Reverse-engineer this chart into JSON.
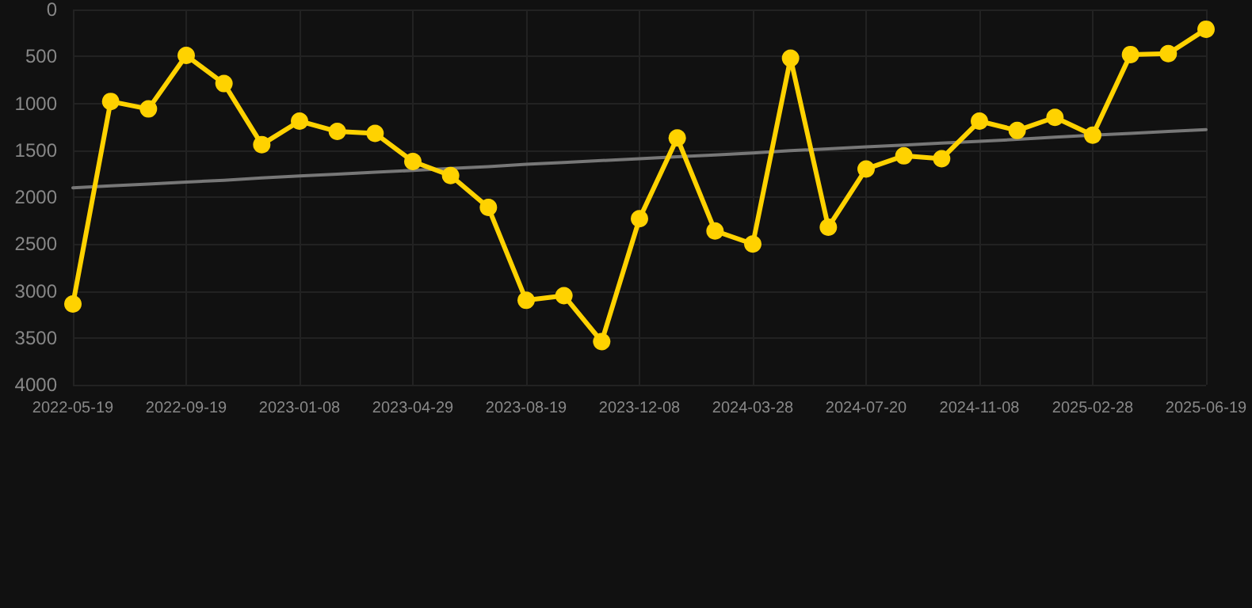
{
  "chart_data": {
    "type": "line",
    "categories": [
      "2022-05-19",
      null,
      null,
      "2022-09-19",
      null,
      null,
      "2023-01-08",
      null,
      null,
      "2023-04-29",
      null,
      null,
      "2023-08-19",
      null,
      null,
      "2023-12-08",
      null,
      null,
      "2024-03-28",
      null,
      null,
      "2024-07-20",
      null,
      null,
      "2024-11-08",
      null,
      null,
      "2025-02-28",
      null,
      null,
      "2025-06-19"
    ],
    "series": [
      {
        "color": "#ffd200",
        "marker": "circle",
        "values": [
          3140,
          980,
          1060,
          490,
          790,
          1440,
          1190,
          1300,
          1320,
          1620,
          1770,
          2110,
          3100,
          3050,
          3540,
          2230,
          1370,
          2360,
          2500,
          520,
          2320,
          1700,
          1560,
          1590,
          1190,
          1290,
          1150,
          1340,
          480,
          470,
          210
        ]
      },
      {
        "type": "line",
        "color": "#777777",
        "marker": "none",
        "values": [
          1900,
          1880,
          1860,
          1840,
          1820,
          1795,
          1775,
          1755,
          1735,
          1715,
          1695,
          1675,
          1650,
          1630,
          1610,
          1590,
          1570,
          1550,
          1530,
          1505,
          1485,
          1465,
          1445,
          1425,
          1405,
          1385,
          1360,
          1340,
          1320,
          1300,
          1280
        ]
      }
    ],
    "ylim": [
      4000,
      0
    ],
    "yticks": [
      0,
      500,
      1000,
      1500,
      2000,
      2500,
      3000,
      3500,
      4000
    ],
    "grid": true,
    "line_style": "solid"
  }
}
